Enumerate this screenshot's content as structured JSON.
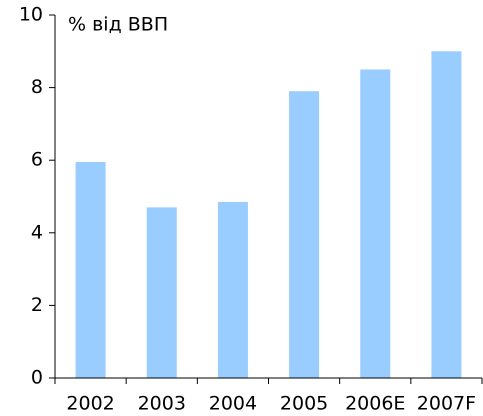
{
  "chart_data": {
    "type": "bar",
    "ylabel": "% від ВВП",
    "categories": [
      "2002",
      "2003",
      "2004",
      "2005",
      "2006E",
      "2007F"
    ],
    "values": [
      5.95,
      4.7,
      4.85,
      7.9,
      8.5,
      9.0
    ],
    "color": "#99ccff",
    "ylim": [
      0,
      10
    ],
    "yticks": [
      0,
      2,
      4,
      6,
      8,
      10
    ],
    "grid": false
  }
}
